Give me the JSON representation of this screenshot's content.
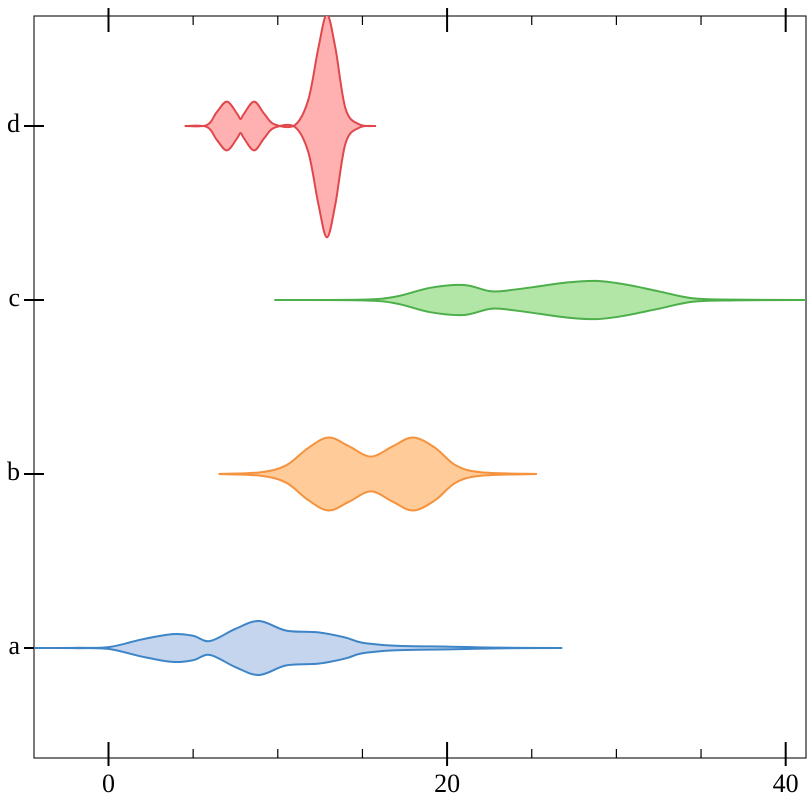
{
  "chart_data": {
    "type": "violin",
    "categories": [
      "a",
      "b",
      "c",
      "d"
    ],
    "xlim": [
      -4.4,
      41.2
    ],
    "xticks": [
      0,
      20,
      40
    ],
    "xticks_minor": [
      5,
      10,
      15,
      25,
      30,
      35
    ],
    "series": [
      {
        "color": "#3d85c6",
        "fill": "#c5d5ee",
        "x": [
          -4.4,
          -2,
          0,
          2,
          3.8,
          5,
          6,
          7.5,
          8.9,
          10.5,
          12.4,
          14,
          15,
          17,
          20,
          23,
          26.8
        ],
        "widths": [
          0,
          0.001,
          0.005,
          0.05,
          0.08,
          0.07,
          0.04,
          0.11,
          0.155,
          0.1,
          0.09,
          0.06,
          0.03,
          0.013,
          0.008,
          0.002,
          0
        ]
      },
      {
        "color": "#f5923e",
        "fill": "#ffcc99",
        "x": [
          6.5,
          9,
          10.5,
          11.8,
          13,
          14.2,
          15.5,
          16.8,
          18,
          19.3,
          20.5,
          22,
          25.3
        ],
        "widths": [
          0,
          0.01,
          0.05,
          0.15,
          0.21,
          0.16,
          0.1,
          0.16,
          0.21,
          0.15,
          0.05,
          0.01,
          0
        ]
      },
      {
        "color": "#4daf4a",
        "fill": "#b2e6a6",
        "x": [
          9.8,
          15,
          17,
          19,
          21,
          22.6,
          24,
          25.5,
          27,
          28.8,
          30.5,
          32.5,
          34.5,
          37,
          41.2
        ],
        "widths": [
          0,
          0.002,
          0.02,
          0.07,
          0.086,
          0.05,
          0.06,
          0.08,
          0.1,
          0.11,
          0.09,
          0.05,
          0.01,
          0.002,
          0
        ]
      },
      {
        "color": "#e0474c",
        "fill": "#ffb0b0",
        "x": [
          4.5,
          5.8,
          6.4,
          7,
          7.6,
          7.8,
          8,
          8.6,
          9.2,
          9.8,
          11,
          11.8,
          12.4,
          12.9,
          13.4,
          14,
          14.8,
          15.8
        ],
        "widths": [
          0,
          0.005,
          0.08,
          0.14,
          0.07,
          0.04,
          0.07,
          0.14,
          0.07,
          0.01,
          0.005,
          0.15,
          0.45,
          0.64,
          0.45,
          0.1,
          0.01,
          0
        ]
      }
    ]
  }
}
